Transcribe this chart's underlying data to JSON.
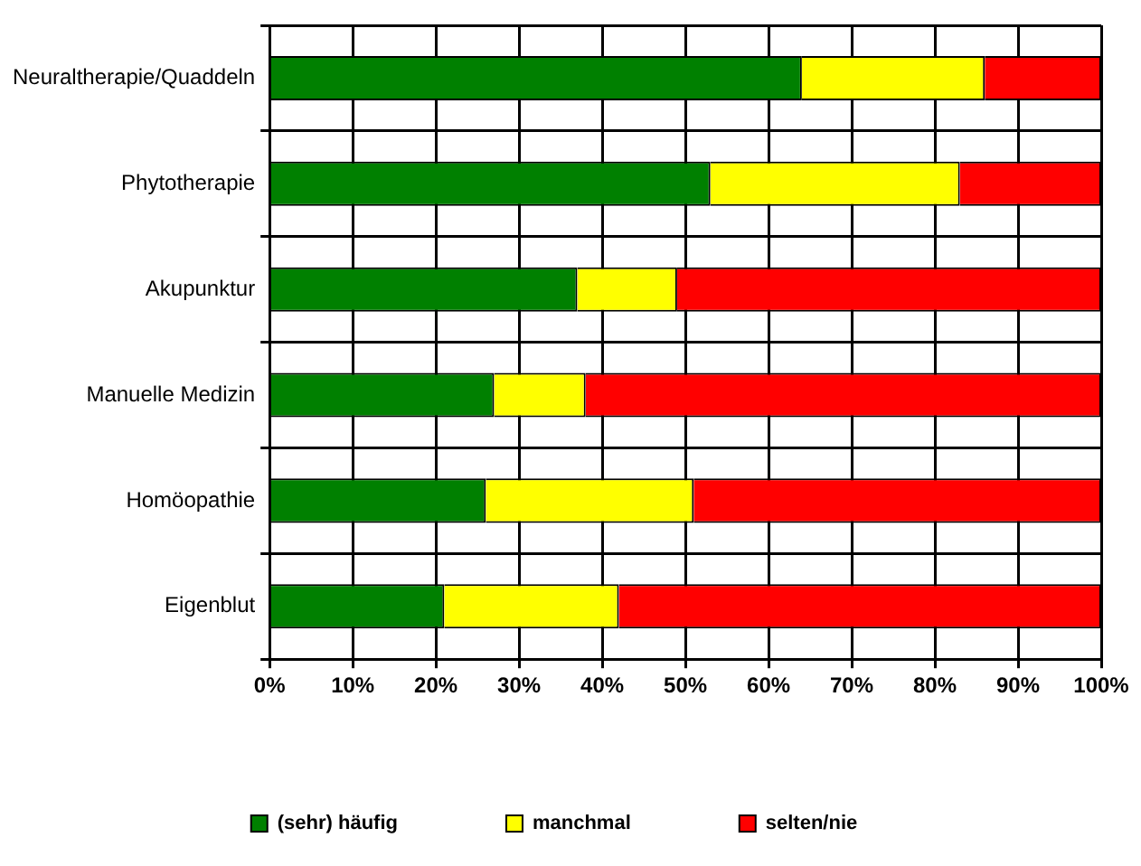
{
  "chart_data": {
    "type": "bar",
    "orientation": "horizontal",
    "stacked": true,
    "categories": [
      "Neuraltherapie/Quaddeln",
      "Phytotherapie",
      "Akupunktur",
      "Manuelle Medizin",
      "Homöopathie",
      "Eigenblut"
    ],
    "series": [
      {
        "name": "(sehr) häufig",
        "color": "#008000",
        "values": [
          64,
          53,
          37,
          27,
          26,
          21
        ]
      },
      {
        "name": "manchmal",
        "color": "#ffff00",
        "values": [
          22,
          30,
          12,
          11,
          25,
          21
        ]
      },
      {
        "name": "selten/nie",
        "color": "#ff0000",
        "values": [
          14,
          17,
          51,
          62,
          49,
          58
        ]
      }
    ],
    "xlim": [
      0,
      100
    ],
    "xticks": [
      {
        "value": 0,
        "label": "0%"
      },
      {
        "value": 10,
        "label": "10%"
      },
      {
        "value": 20,
        "label": "20%"
      },
      {
        "value": 30,
        "label": "30%"
      },
      {
        "value": 40,
        "label": "40%"
      },
      {
        "value": 50,
        "label": "50%"
      },
      {
        "value": 60,
        "label": "60%"
      },
      {
        "value": 70,
        "label": "70%"
      },
      {
        "value": 80,
        "label": "80%"
      },
      {
        "value": 90,
        "label": "90%"
      },
      {
        "value": 100,
        "label": "100%"
      }
    ],
    "grid": true,
    "legend": "bottom"
  }
}
